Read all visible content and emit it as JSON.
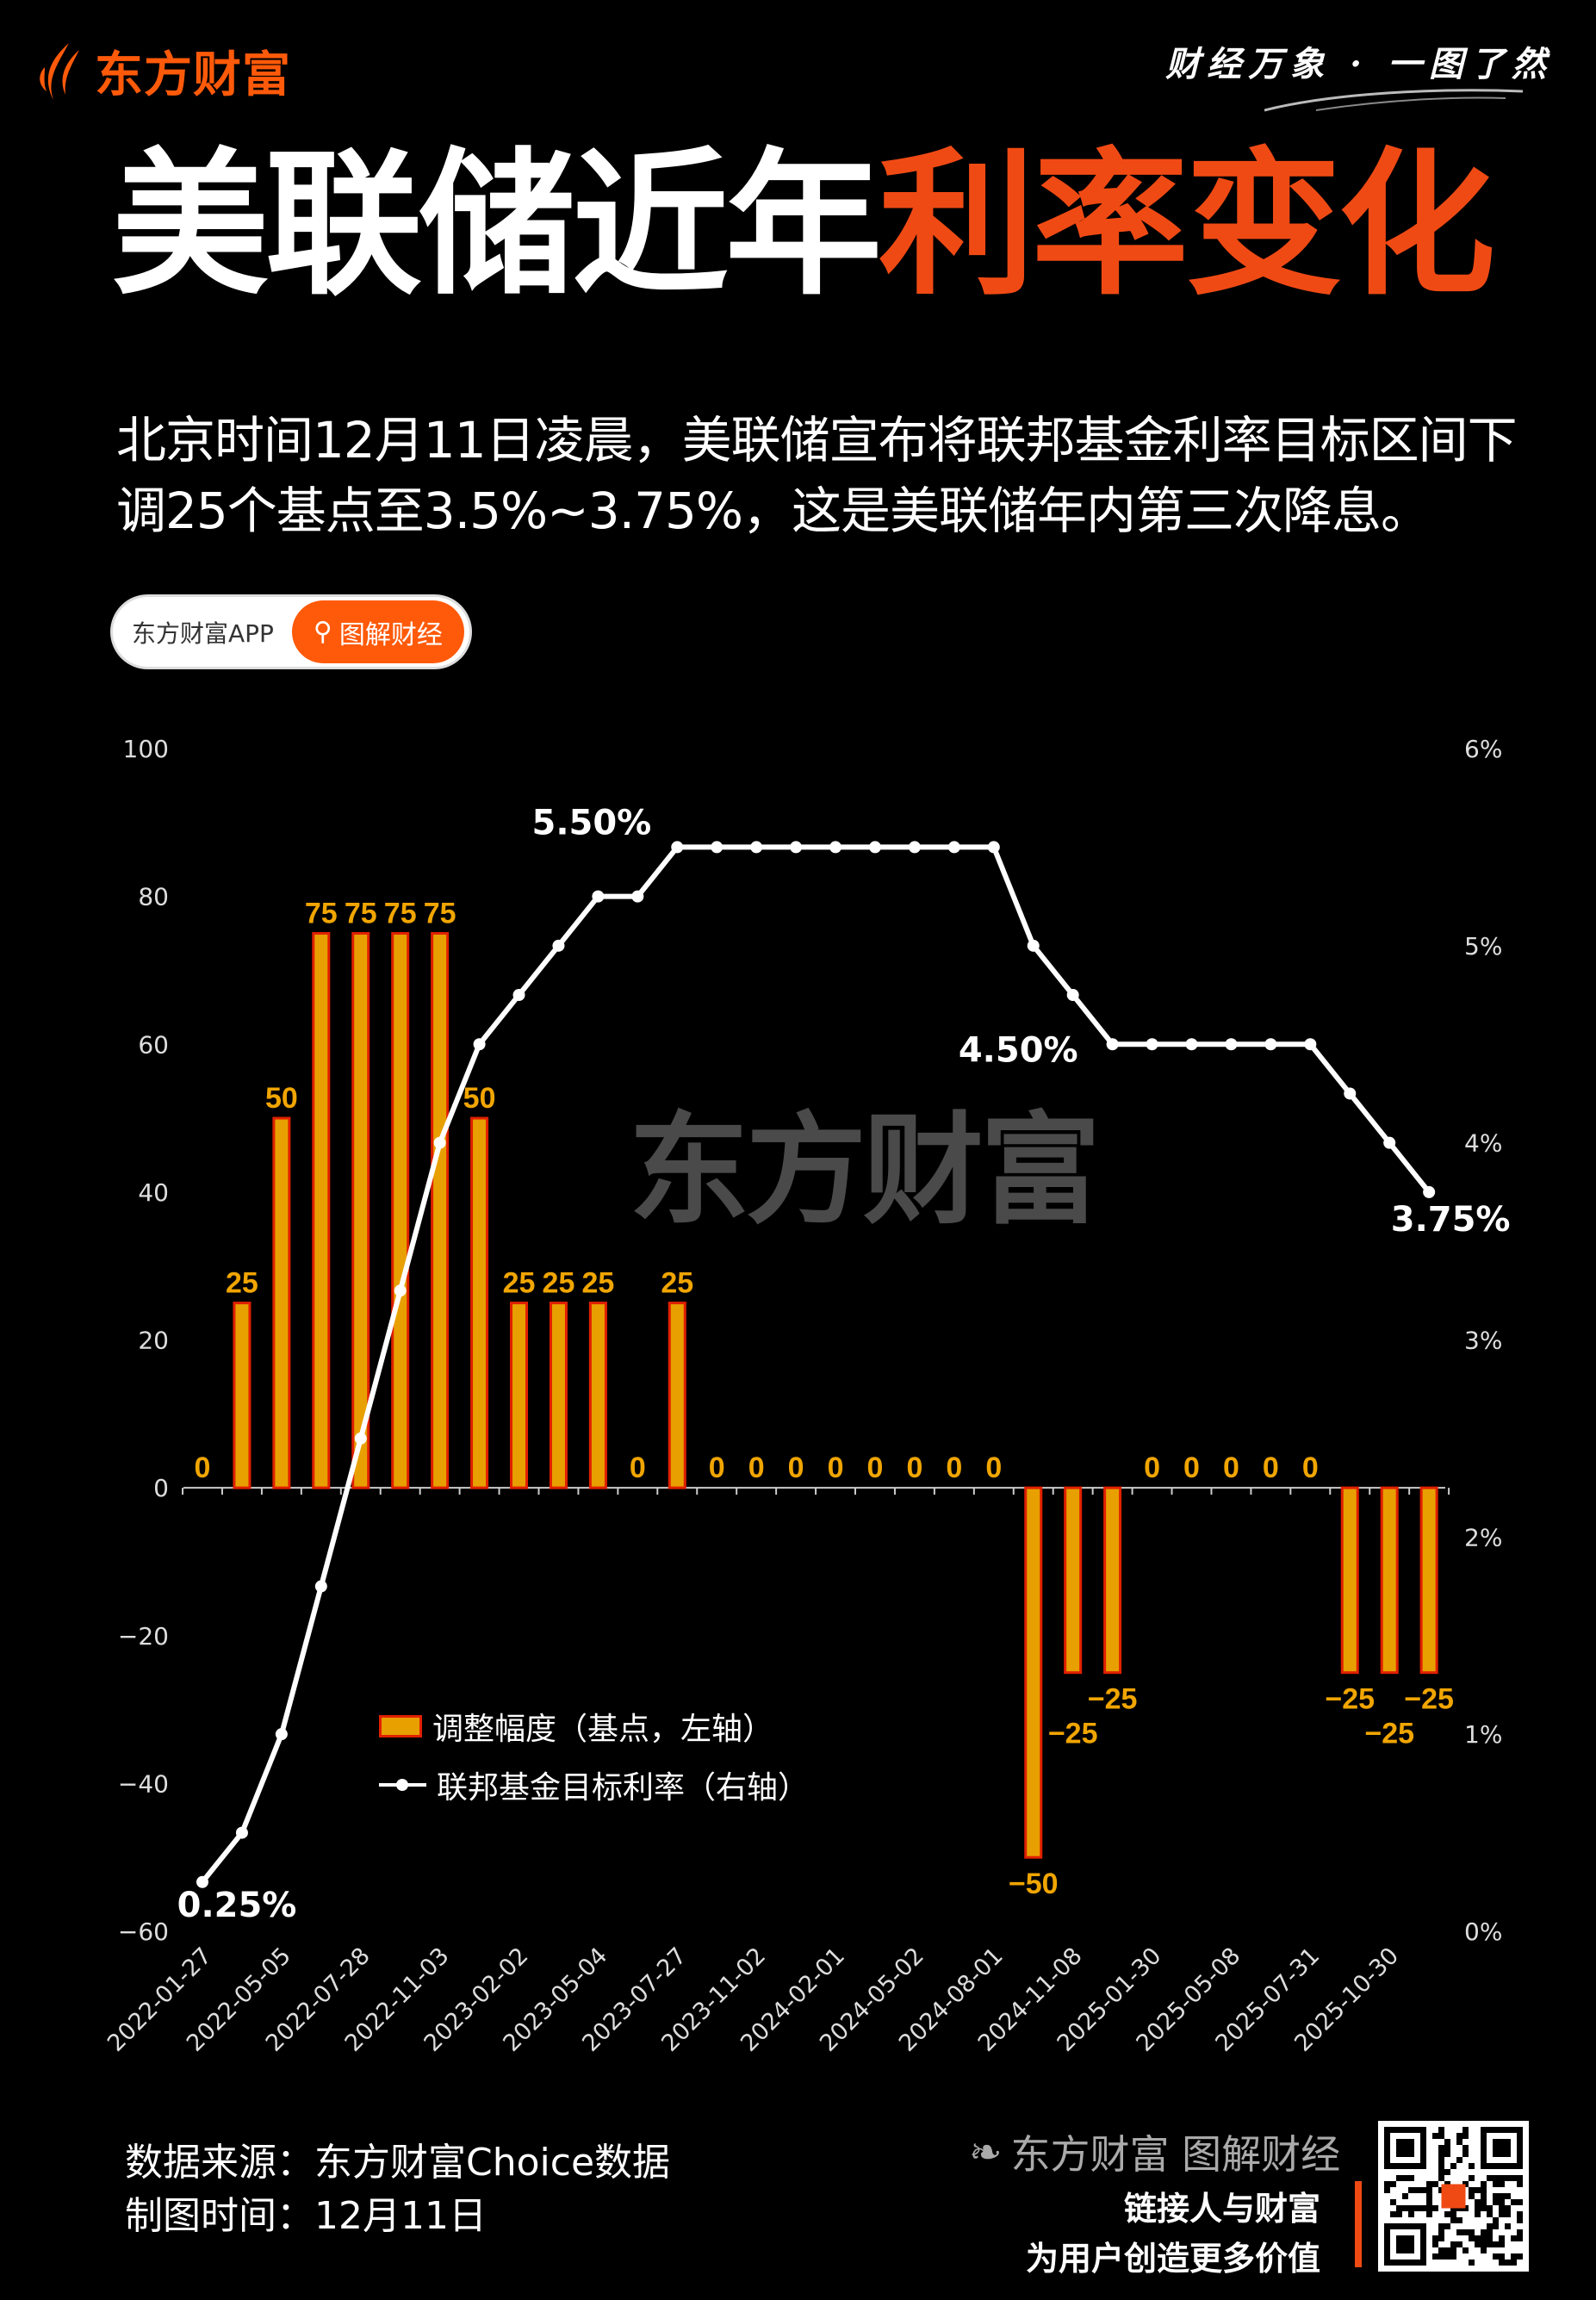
{
  "header": {
    "brand": "东方财富",
    "slogan": "财经万象 · 一图了然",
    "title_white": "美联储近年",
    "title_orange": "利率变化",
    "subtitle": "北京时间12月11日凌晨，美联储宣布将联邦基金利率目标区间下调25个基点至3.5%~3.75%，这是美联储年内第三次降息。",
    "pill_left": "东方财富APP",
    "pill_right": "图解财经"
  },
  "watermark": "东方财富",
  "footer": {
    "source": "数据来源：东方财富Choice数据",
    "date": "制图时间：12月11日",
    "brand": "东方财富 图解财经",
    "slogan1": "链接人与财富",
    "slogan2": "为用户创造更多价值"
  },
  "colors": {
    "accent": "#f04a14",
    "bar_fill": "#e8a000",
    "bar_stroke": "#e02000",
    "bar_label": "#f0a500",
    "line": "#ffffff",
    "background": "#000000"
  },
  "chart_data": {
    "type": "bar+line",
    "legend_position": "lower-left",
    "grid": false,
    "y_left": {
      "lim": [
        -60,
        100
      ],
      "ticks": [
        "100",
        "80",
        "60",
        "40",
        "20",
        "0",
        "−20",
        "−40",
        "−60"
      ]
    },
    "y_right": {
      "lim": [
        0,
        6
      ],
      "ticks": [
        "6%",
        "5%",
        "4%",
        "3%",
        "2%",
        "1%",
        "0%"
      ]
    },
    "x_tick_labels": [
      "2022-01-27",
      "2022-05-05",
      "2022-07-28",
      "2022-11-03",
      "2023-02-02",
      "2023-05-04",
      "2023-07-27",
      "2023-11-02",
      "2024-02-01",
      "2024-05-02",
      "2024-08-01",
      "2024-11-08",
      "2025-01-30",
      "2025-05-08",
      "2025-07-31",
      "2025-10-30"
    ],
    "series": [
      {
        "name": "调整幅度（基点，左轴）",
        "type": "bar",
        "values": [
          0,
          25,
          50,
          75,
          75,
          75,
          75,
          50,
          25,
          25,
          25,
          0,
          25,
          0,
          0,
          0,
          0,
          0,
          0,
          0,
          0,
          -50,
          -25,
          -25,
          0,
          0,
          0,
          0,
          0,
          -25,
          -25,
          -25
        ]
      },
      {
        "name": "联邦基金目标利率（右轴）",
        "type": "line",
        "values": [
          0.25,
          0.5,
          1.0,
          1.75,
          2.5,
          3.25,
          4.0,
          4.5,
          4.75,
          5.0,
          5.25,
          5.25,
          5.5,
          5.5,
          5.5,
          5.5,
          5.5,
          5.5,
          5.5,
          5.5,
          5.5,
          5.0,
          4.75,
          4.5,
          4.5,
          4.5,
          4.5,
          4.5,
          4.5,
          4.25,
          4.0,
          3.75
        ]
      }
    ],
    "line_labels": [
      {
        "index": 0,
        "text": "0.25%"
      },
      {
        "index": 12,
        "text": "5.50%"
      },
      {
        "index": 23,
        "text": "4.50%"
      },
      {
        "index": 31,
        "text": "3.75%"
      }
    ]
  }
}
